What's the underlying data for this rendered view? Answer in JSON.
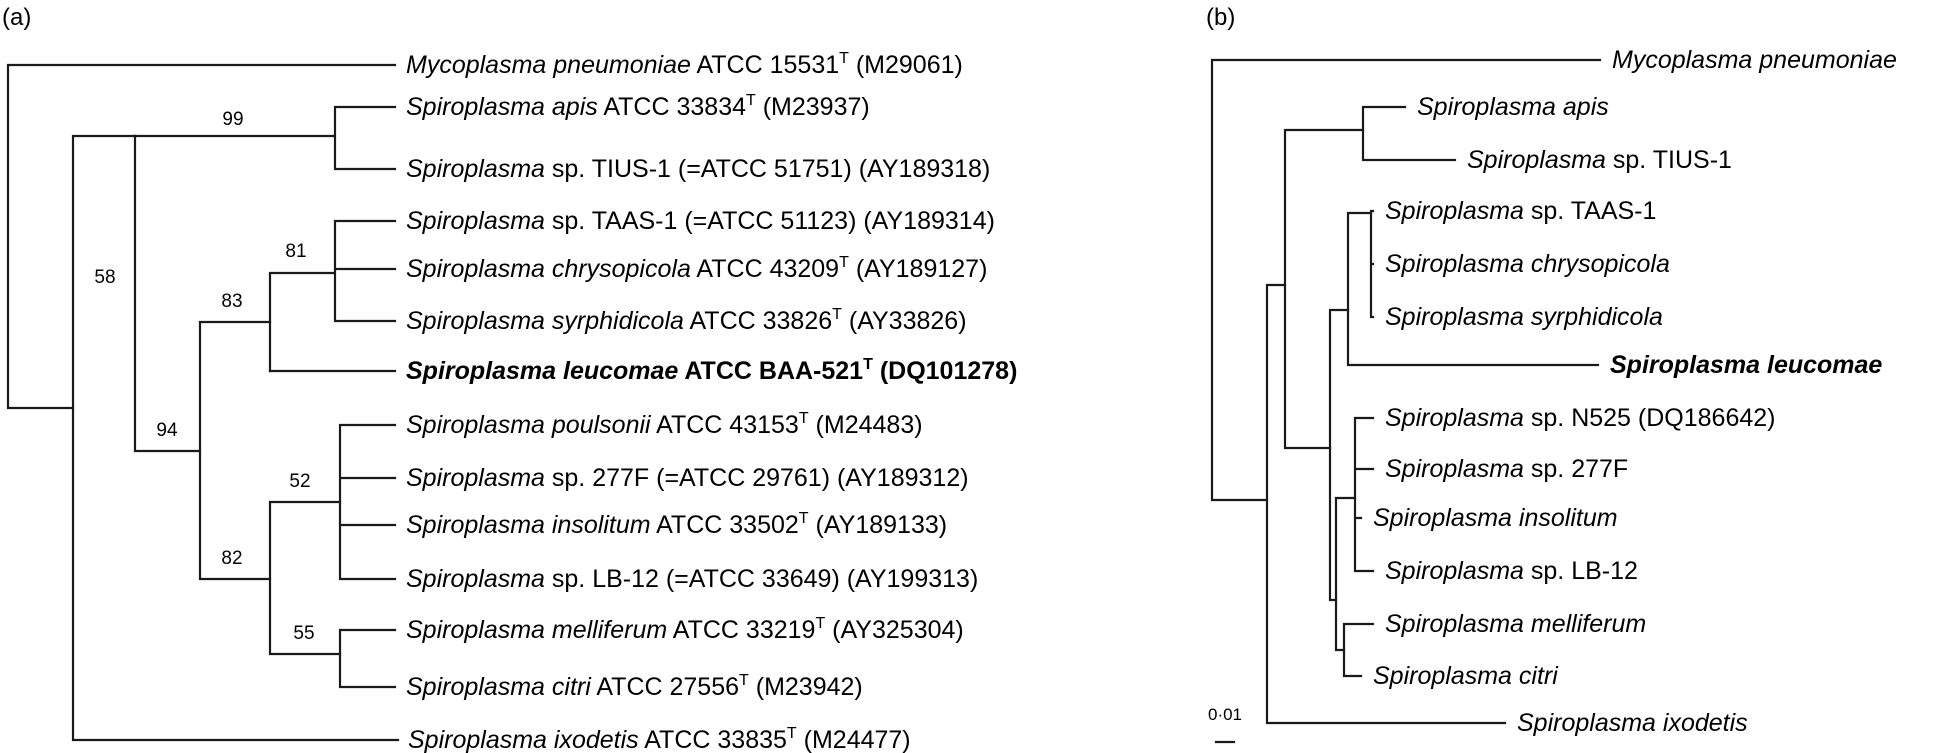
{
  "panel_a": {
    "label": "(a)",
    "leaves": [
      {
        "genus": "Mycoplasma",
        "epithet": " pneumoniae",
        "strain": " ATCC 15531",
        "sup": "T",
        "acc": " (M29061)",
        "bold": false
      },
      {
        "genus": "Spiroplasma",
        "epithet": " apis",
        "strain": " ATCC 33834",
        "sup": "T",
        "acc": " (M23937)",
        "bold": false
      },
      {
        "genus": "Spiroplasma",
        "epithet": "",
        "strain": " sp. TIUS-1 (=ATCC 51751) (AY189318)",
        "sup": "",
        "acc": "",
        "bold": false
      },
      {
        "genus": "Spiroplasma",
        "epithet": "",
        "strain": " sp. TAAS-1 (=ATCC 51123) (AY189314)",
        "sup": "",
        "acc": "",
        "bold": false
      },
      {
        "genus": "Spiroplasma",
        "epithet": " chrysopicola",
        "strain": " ATCC 43209",
        "sup": "T",
        "acc": " (AY189127)",
        "bold": false
      },
      {
        "genus": "Spiroplasma",
        "epithet": " syrphidicola",
        "strain": " ATCC 33826",
        "sup": "T",
        "acc": " (AY33826)",
        "bold": false
      },
      {
        "genus": "Spiroplasma",
        "epithet": " leucomae",
        "strain": " ATCC BAA-521",
        "sup": "T",
        "acc": " (DQ101278)",
        "bold": true
      },
      {
        "genus": "Spiroplasma",
        "epithet": " poulsonii",
        "strain": " ATCC 43153",
        "sup": "T",
        "acc": " (M24483)",
        "bold": false
      },
      {
        "genus": "Spiroplasma",
        "epithet": "",
        "strain": " sp. 277F (=ATCC 29761) (AY189312)",
        "sup": "",
        "acc": "",
        "bold": false
      },
      {
        "genus": "Spiroplasma",
        "epithet": " insolitum",
        "strain": " ATCC 33502",
        "sup": "T",
        "acc": " (AY189133)",
        "bold": false
      },
      {
        "genus": "Spiroplasma",
        "epithet": "",
        "strain": " sp. LB-12 (=ATCC 33649) (AY199313)",
        "sup": "",
        "acc": "",
        "bold": false
      },
      {
        "genus": "Spiroplasma",
        "epithet": " melliferum",
        "strain": " ATCC 33219",
        "sup": "T",
        "acc": " (AY325304)",
        "bold": false
      },
      {
        "genus": "Spiroplasma",
        "epithet": " citri",
        "strain": " ATCC 27556",
        "sup": "T",
        "acc": " (M23942)",
        "bold": false
      },
      {
        "genus": "Spiroplasma",
        "epithet": " ixodetis",
        "strain": " ATCC 33835",
        "sup": "T",
        "acc": " (M24477)",
        "bold": false
      }
    ],
    "bootstrap": [
      "99",
      "58",
      "81",
      "83",
      "94",
      "52",
      "82",
      "55"
    ]
  },
  "panel_b": {
    "label": "(b)",
    "leaves": [
      {
        "genus": "Mycoplasma",
        "rest_italic": " pneumoniae",
        "rest_plain": "",
        "bold": false
      },
      {
        "genus": "Spiroplasma",
        "rest_italic": " apis",
        "rest_plain": "",
        "bold": false
      },
      {
        "genus": "Spiroplasma",
        "rest_italic": "",
        "rest_plain": " sp. TIUS-1",
        "bold": false
      },
      {
        "genus": "Spiroplasma",
        "rest_italic": "",
        "rest_plain": " sp. TAAS-1",
        "bold": false
      },
      {
        "genus": "Spiroplasma",
        "rest_italic": " chrysopicola",
        "rest_plain": "",
        "bold": false
      },
      {
        "genus": "Spiroplasma",
        "rest_italic": " syrphidicola",
        "rest_plain": "",
        "bold": false
      },
      {
        "genus": "Spiroplasma",
        "rest_italic": " leucomae",
        "rest_plain": "",
        "bold": true
      },
      {
        "genus": "Spiroplasma",
        "rest_italic": "",
        "rest_plain": " sp. N525 (DQ186642)",
        "bold": false
      },
      {
        "genus": "Spiroplasma",
        "rest_italic": "",
        "rest_plain": " sp. 277F",
        "bold": false
      },
      {
        "genus": "Spiroplasma",
        "rest_italic": " insolitum",
        "rest_plain": "",
        "bold": false
      },
      {
        "genus": "Spiroplasma",
        "rest_italic": "",
        "rest_plain": " sp. LB-12",
        "bold": false
      },
      {
        "genus": "Spiroplasma",
        "rest_italic": " melliferum",
        "rest_plain": "",
        "bold": false
      },
      {
        "genus": "Spiroplasma",
        "rest_italic": " citri",
        "rest_plain": "",
        "bold": false
      },
      {
        "genus": "Spiroplasma",
        "rest_italic": " ixodetis",
        "rest_plain": "",
        "bold": false
      }
    ],
    "scale_label": "0·01"
  }
}
